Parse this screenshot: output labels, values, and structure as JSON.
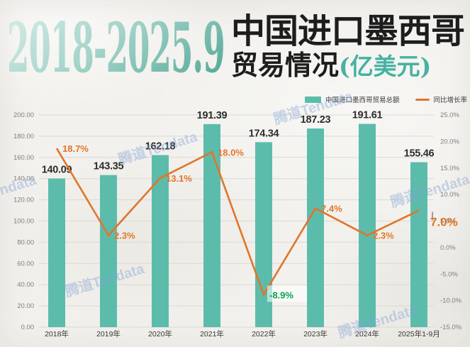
{
  "header": {
    "period": "2018-2025.9",
    "title_line1": "中国进口墨西哥",
    "title_line2": "贸易情况",
    "unit": "(亿美元)"
  },
  "legend": [
    {
      "label": "中国进口墨西哥贸易总额",
      "type": "bar",
      "color": "#5cbcab"
    },
    {
      "label": "同比增长率",
      "type": "line",
      "color": "#e0752c"
    }
  ],
  "watermark": {
    "text": "腾道Tendata"
  },
  "colors": {
    "bar": "#5cbcab",
    "line": "#e0752c",
    "growth_label": "#e2762a",
    "growth_label_negative": "#00a551",
    "bar_value_label": "#2d2d2d",
    "axis_tick": "#7f7f7f",
    "x_label": "#383838",
    "gridline": "#dcd9d3",
    "title_accent": "#45b2a1"
  },
  "chart_data": {
    "type": "bar+line combo",
    "title": "2018-2025.9 中国进口墨西哥贸易情况(亿美元)",
    "categories": [
      "2018年",
      "2019年",
      "2020年",
      "2021年",
      "2022年",
      "2023年",
      "2024年",
      "2025年1-9月"
    ],
    "series": [
      {
        "name": "中国进口墨西哥贸易总额",
        "type": "bar",
        "axis": "left",
        "values": [
          140.09,
          143.35,
          162.18,
          191.39,
          174.34,
          187.23,
          191.61,
          155.46
        ],
        "value_labels": [
          "140.09",
          "143.35",
          "162.18",
          "191.39",
          "174.34",
          "187.23",
          "191.61",
          "155.46"
        ]
      },
      {
        "name": "同比增长率",
        "type": "line",
        "axis": "right",
        "values": [
          18.7,
          2.3,
          13.1,
          18.0,
          -8.9,
          7.4,
          2.3,
          7.0
        ],
        "point_labels": [
          {
            "text": "18.7%"
          },
          {
            "text": "2.3%"
          },
          {
            "text": "13.1%"
          },
          {
            "text": "18.0%"
          },
          {
            "text": "-8.9%",
            "negative": true,
            "bg": true
          },
          {
            "text": "7.4%"
          },
          {
            "text": "2.3%"
          },
          {
            "text": "7.0%",
            "emphasis": true
          }
        ]
      }
    ],
    "left_axis": {
      "min": 0,
      "max": 200,
      "step": 20,
      "ticks": [
        "200.00",
        "180.00",
        "160.00",
        "140.00",
        "120.00",
        "100.00",
        "80.00",
        "60.00",
        "40.00",
        "20.00",
        "0.00"
      ]
    },
    "right_axis": {
      "min": -15,
      "max": 25,
      "step": 5,
      "ticks": [
        "25.0%",
        "20.0%",
        "15.0%",
        "10.0%",
        "5.0%",
        "0.0%",
        "-5.0%",
        "-10.0%",
        "-15.0%"
      ]
    },
    "grid": "horizontal",
    "legend_position": "top-right"
  }
}
